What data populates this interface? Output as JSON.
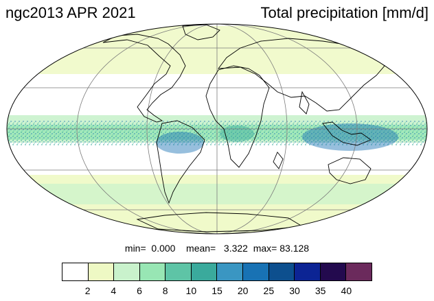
{
  "header": {
    "title_left": "ngc2013 APR 2021",
    "title_right": "Total precipitation [mm/d]"
  },
  "stats": {
    "min_label": "min=",
    "min_value": "0.000",
    "mean_label": "mean=",
    "mean_value": "3.322",
    "max_label": "max=",
    "max_value": "83.128"
  },
  "colorbar": {
    "colors": [
      "#ffffff",
      "#eef9c4",
      "#c9f2cc",
      "#98e6b4",
      "#5ec4a6",
      "#3aaa9c",
      "#3a96c2",
      "#1872b4",
      "#0d4f8e",
      "#0c2494",
      "#230a4e",
      "#6b2a5c"
    ],
    "ticks": [
      "2",
      "4",
      "6",
      "8",
      "10",
      "15",
      "20",
      "25",
      "30",
      "35",
      "40"
    ]
  },
  "map": {
    "projection": "Mollweide",
    "ocean_color": "#ffffff",
    "coastline_color": "#000000",
    "gridline_color": "#7a7a7a"
  }
}
